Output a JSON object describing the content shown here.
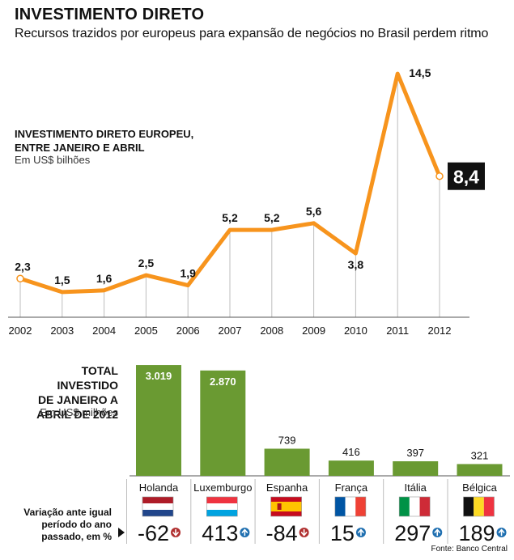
{
  "header": {
    "title": "INVESTIMENTO DIRETO",
    "subtitle": "Recursos trazidos por europeus para expansão de negócios no Brasil perdem ritmo"
  },
  "colors": {
    "line": "#f7941d",
    "bar": "#6a9a32",
    "grid": "#bdbdbd",
    "arrow_down": "#b03030",
    "arrow_up": "#1f6fb0"
  },
  "line_panel": {
    "title_line1": "INVESTIMENTO DIRETO EUROPEU,",
    "title_line2": "ENTRE JANEIRO E ABRIL",
    "unit": "Em US$ bilhões"
  },
  "bar_panel": {
    "title_line1": "TOTAL INVESTIDO",
    "title_line2": "DE JANEIRO A",
    "title_line3": "ABRIL DE 2012",
    "unit": "Em US$ milhões"
  },
  "variation_label": {
    "line1": "Variação ante igual",
    "line2": "período do ano",
    "line3": "passado, em %"
  },
  "source": "Fonte: Banco Central",
  "chart_data": [
    {
      "type": "line",
      "title": "INVESTIMENTO DIRETO EUROPEU, ENTRE JANEIRO E ABRIL",
      "ylabel": "Em US$ bilhões",
      "x": [
        "2002",
        "2003",
        "2004",
        "2005",
        "2006",
        "2007",
        "2008",
        "2009",
        "2010",
        "2011",
        "2012"
      ],
      "values": [
        2.3,
        1.5,
        1.6,
        2.5,
        1.9,
        5.2,
        5.2,
        5.6,
        3.8,
        14.5,
        8.4
      ],
      "labels": [
        "2,3",
        "1,5",
        "1,6",
        "2,5",
        "1,9",
        "5,2",
        "5,2",
        "5,6",
        "3,8",
        "14,5",
        "8,4"
      ],
      "highlight": "8,4",
      "grid": "vertical"
    },
    {
      "type": "bar",
      "title": "TOTAL INVESTIDO DE JANEIRO A ABRIL DE 2012",
      "ylabel": "Em US$ milhões",
      "categories": [
        "Holanda",
        "Luxemburgo",
        "Espanha",
        "França",
        "Itália",
        "Bélgica"
      ],
      "values": [
        3019,
        2870,
        739,
        416,
        397,
        321
      ],
      "labels": [
        "3.019",
        "2.870",
        "739",
        "416",
        "397",
        "321"
      ],
      "variation_pct": [
        -62,
        413,
        -84,
        15,
        297,
        189
      ],
      "variation_labels": [
        "-62",
        "413",
        "-84",
        "15",
        "297",
        "189"
      ],
      "flags": [
        "netherlands-flag",
        "luxembourg-flag",
        "spain-flag",
        "france-flag",
        "italy-flag",
        "belgium-flag"
      ]
    }
  ]
}
